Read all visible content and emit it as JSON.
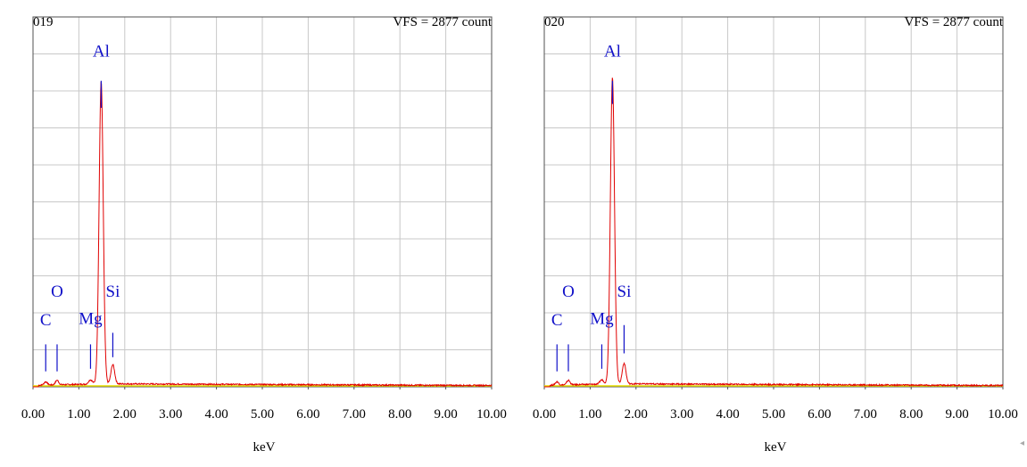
{
  "colors": {
    "spectrum": "#e00000",
    "markers": "#1010c8",
    "grid": "#c8c8c8",
    "frame": "#505050",
    "baseline": "#e8e000",
    "text": "#000000"
  },
  "corner_glyph": "◂",
  "chart_data": [
    {
      "type": "line",
      "title": "019",
      "subtitle": "VFS = 2877 count",
      "xlabel": "keV",
      "xlim": [
        0,
        10
      ],
      "ylim": [
        0,
        2877
      ],
      "grid": true,
      "x_ticks": [
        "0.00",
        "1.00",
        "2.00",
        "3.00",
        "4.00",
        "5.00",
        "6.00",
        "7.00",
        "8.00",
        "9.00",
        "10.00"
      ],
      "peaks": [
        {
          "element": "Al",
          "kev": 1.486,
          "counts": 2350,
          "sigma": 0.045
        },
        {
          "element": "Si",
          "kev": 1.74,
          "counts": 150,
          "sigma": 0.04
        },
        {
          "element": "Mg",
          "kev": 1.254,
          "counts": 30,
          "sigma": 0.04
        },
        {
          "element": "O",
          "kev": 0.525,
          "counts": 35,
          "sigma": 0.035
        },
        {
          "element": "C",
          "kev": 0.277,
          "counts": 25,
          "sigma": 0.035
        }
      ],
      "background_counts": 20,
      "annotations": [
        {
          "label": "Al",
          "kev": 1.486,
          "line_top": 2380,
          "line_bottom": 2170,
          "label_counts": 2570
        },
        {
          "label": "Si",
          "kev": 1.74,
          "line_top": 420,
          "line_bottom": 230,
          "label_counts": 700
        },
        {
          "label": "Mg",
          "kev": 1.254,
          "line_top": 330,
          "line_bottom": 140,
          "label_counts": 490
        },
        {
          "label": "O",
          "kev": 0.525,
          "line_top": 330,
          "line_bottom": 120,
          "label_counts": 700
        },
        {
          "label": "C",
          "kev": 0.277,
          "line_top": 330,
          "line_bottom": 120,
          "label_counts": 480
        }
      ]
    },
    {
      "type": "line",
      "title": "020",
      "subtitle": "VFS = 2877 count",
      "xlabel": "keV",
      "xlim": [
        0,
        10
      ],
      "ylim": [
        0,
        2877
      ],
      "grid": true,
      "x_ticks": [
        "0.00",
        "1.00",
        "2.00",
        "3.00",
        "4.00",
        "5.00",
        "6.00",
        "7.00",
        "8.00",
        "9.00",
        "10.00"
      ],
      "peaks": [
        {
          "element": "Al",
          "kev": 1.486,
          "counts": 2380,
          "sigma": 0.045
        },
        {
          "element": "Si",
          "kev": 1.74,
          "counts": 160,
          "sigma": 0.04
        },
        {
          "element": "Mg",
          "kev": 1.254,
          "counts": 30,
          "sigma": 0.04
        },
        {
          "element": "O",
          "kev": 0.525,
          "counts": 35,
          "sigma": 0.035
        },
        {
          "element": "C",
          "kev": 0.277,
          "counts": 25,
          "sigma": 0.035
        }
      ],
      "background_counts": 20,
      "annotations": [
        {
          "label": "Al",
          "kev": 1.486,
          "line_top": 2380,
          "line_bottom": 2200,
          "label_counts": 2570
        },
        {
          "label": "Si",
          "kev": 1.74,
          "line_top": 480,
          "line_bottom": 260,
          "label_counts": 700
        },
        {
          "label": "Mg",
          "kev": 1.254,
          "line_top": 330,
          "line_bottom": 140,
          "label_counts": 490
        },
        {
          "label": "O",
          "kev": 0.525,
          "line_top": 330,
          "line_bottom": 120,
          "label_counts": 700
        },
        {
          "label": "C",
          "kev": 0.277,
          "line_top": 330,
          "line_bottom": 120,
          "label_counts": 480
        }
      ]
    }
  ]
}
